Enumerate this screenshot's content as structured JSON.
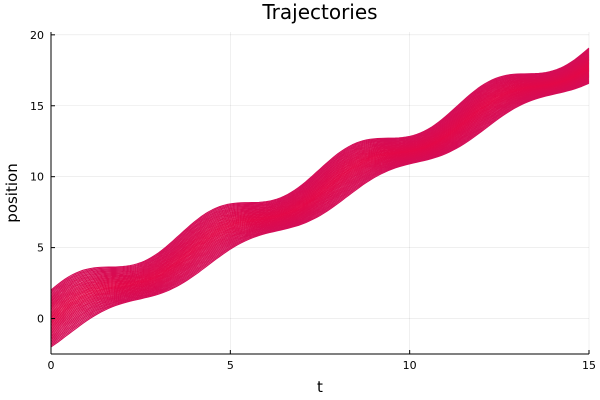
{
  "chart_data": {
    "type": "line",
    "title": "Trajectories",
    "xlabel": "t",
    "ylabel": "position",
    "xlim": [
      0,
      15
    ],
    "ylim": [
      -2.5,
      20.2
    ],
    "xticks": [
      0,
      5,
      10,
      15
    ],
    "yticks": [
      0,
      5,
      10,
      15,
      20
    ],
    "xtick_labels": [
      "0",
      "5",
      "10",
      "15"
    ],
    "ytick_labels": [
      "0",
      "5",
      "10",
      "15",
      "20"
    ],
    "grid": true,
    "legend": "none",
    "line_color": "#e0064d",
    "initial_positions_range": [
      -2,
      2
    ],
    "final_positions_range": [
      16.7,
      19.6
    ],
    "trajectory_count": 40
  }
}
